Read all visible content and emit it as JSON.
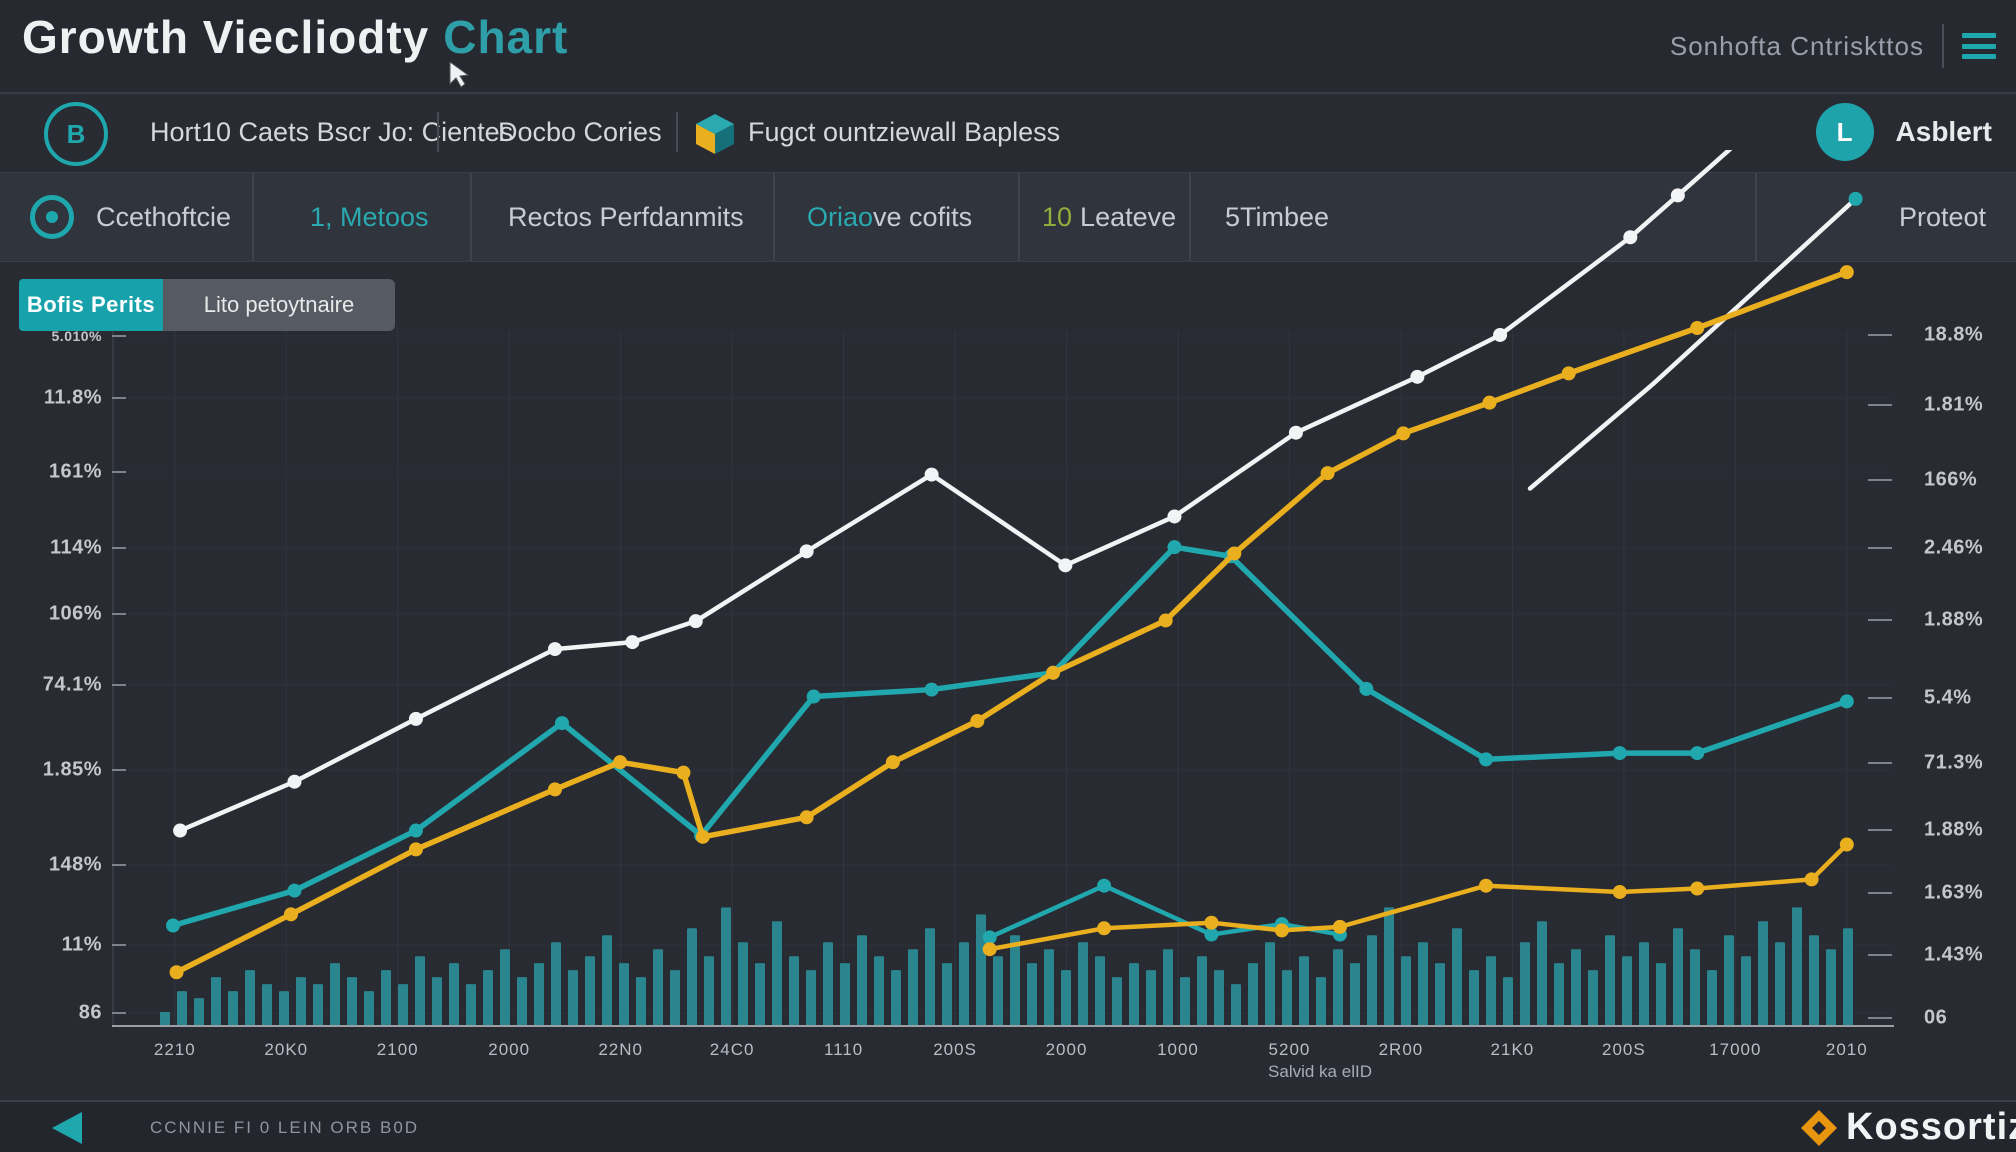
{
  "header": {
    "title_main": "Growth Viecliodty",
    "title_accent": "Chart",
    "right_text": "Sonhofta Cntriskttos"
  },
  "toolbar": {
    "item1": "Hort10 Caets Bscr Jo: Cientes",
    "item1_icon_letter": "B",
    "item2": "Docbo Cories",
    "item3": "Fugct ountziewall Bapless",
    "avatar_letter": "L",
    "user_label": "Asblert"
  },
  "nav": {
    "item1": "Ccethoftcie",
    "item2": "1, Metoos",
    "item3": "Rectos Perfdanmits",
    "item4_pre": "Oriao",
    "item4": "ve cofits",
    "item5_num": "10",
    "item5": "Leateve",
    "item6": "5Timbee",
    "item7": "Proteot"
  },
  "buttons": {
    "primary": "Bofis Perits",
    "secondary": "Lito petoytnaire"
  },
  "footer": {
    "left_text": "CCNNIE FI 0 LEIN ORB B0D",
    "brand": "Kossortiz"
  },
  "colors": {
    "teal": "#1fa7ae",
    "yellow": "#eaaf1e",
    "white_line": "#f2f3f5",
    "bars": "#2a8f98",
    "grid": "#3a3e47",
    "axis": "#9aa0a6",
    "green": "#8fae3c"
  },
  "chart_data": {
    "type": "mixed",
    "title": "Growth Viecliodty Chart",
    "x_axis_caption": "Salvid ka elID",
    "x_labels": [
      "2210",
      "20K0",
      "2100",
      "2000",
      "22N0",
      "24C0",
      "1110",
      "200S",
      "2000",
      "1000",
      "5200",
      "2R00",
      "21K0",
      "200S",
      "17000",
      "2010"
    ],
    "y_left_labels": [
      "5.010%",
      "11.8%",
      "161%",
      "114%",
      "106%",
      "74.1%",
      "1.85%",
      "148%",
      "11%",
      "86"
    ],
    "y_left_pos": [
      336,
      398,
      472,
      548,
      614,
      685,
      770,
      865,
      945,
      1013
    ],
    "y_right_labels": [
      "18.8%",
      "1.81%",
      "166%",
      "2.46%",
      "1.88%",
      "5.4%",
      "71.3%",
      "1.88%",
      "1.63%",
      "1.43%",
      "06"
    ],
    "y_right_pos": [
      335,
      405,
      480,
      548,
      620,
      698,
      763,
      830,
      893,
      955,
      1018
    ],
    "ylim": [
      0,
      100
    ],
    "grid": true,
    "legend": "none",
    "series": [
      {
        "name": "white-line",
        "type": "line",
        "color": "#f2f3f5",
        "width": 4.5,
        "dots": "all",
        "points": [
          [
            3.3,
            28
          ],
          [
            9.8,
            35
          ],
          [
            16.7,
            44
          ],
          [
            24.6,
            54
          ],
          [
            29,
            55
          ],
          [
            32.6,
            58
          ],
          [
            38.9,
            68
          ],
          [
            46,
            79
          ],
          [
            53.6,
            66
          ],
          [
            59.8,
            73
          ],
          [
            66.7,
            85
          ],
          [
            73.6,
            93
          ],
          [
            78.3,
            99
          ],
          [
            85.7,
            113
          ],
          [
            88.4,
            119
          ],
          [
            97.8,
            140
          ]
        ]
      },
      {
        "name": "white-line-2",
        "type": "line",
        "color": "#f2f3f5",
        "width": 4.5,
        "dots": "last",
        "end_dot": "#1fa7ae",
        "points": [
          [
            80,
            77
          ],
          [
            87,
            92
          ],
          [
            98.5,
            118.5
          ]
        ]
      },
      {
        "name": "teal-line",
        "type": "line",
        "color": "#21a8ae",
        "width": 5.5,
        "dots": "all",
        "points": [
          [
            2.9,
            14.4
          ],
          [
            9.8,
            19.4
          ],
          [
            16.7,
            28
          ],
          [
            25,
            43.4
          ],
          [
            32.9,
            27.3
          ],
          [
            39.3,
            47.2
          ],
          [
            46,
            48.2
          ],
          [
            52.9,
            50.6
          ],
          [
            59.8,
            68.6
          ],
          [
            63,
            67.3
          ],
          [
            70.7,
            48.3
          ],
          [
            77.5,
            38.2
          ],
          [
            85.1,
            39.1
          ],
          [
            89.5,
            39.1
          ],
          [
            98,
            46.5
          ]
        ]
      },
      {
        "name": "yellow-line",
        "type": "line",
        "color": "#eaaf1e",
        "width": 5.5,
        "dots": "all",
        "points": [
          [
            3.1,
            7.7
          ],
          [
            9.6,
            16
          ],
          [
            16.7,
            25.3
          ],
          [
            24.6,
            33.9
          ],
          [
            28.3,
            37.8
          ],
          [
            31.9,
            36.3
          ],
          [
            33,
            27.1
          ],
          [
            38.9,
            29.9
          ],
          [
            43.8,
            37.8
          ],
          [
            48.6,
            43.7
          ],
          [
            52.9,
            50.6
          ],
          [
            59.3,
            58.1
          ],
          [
            63.2,
            67.7
          ],
          [
            68.5,
            79.2
          ],
          [
            72.8,
            84.9
          ],
          [
            77.7,
            89.3
          ],
          [
            82.2,
            93.5
          ],
          [
            89.5,
            100
          ],
          [
            98,
            108
          ]
        ]
      },
      {
        "name": "teal-line-small",
        "type": "line",
        "color": "#21a8ae",
        "width": 4.5,
        "dots": "all",
        "points": [
          [
            49.3,
            12.7
          ],
          [
            55.8,
            20.1
          ],
          [
            61.9,
            13.1
          ],
          [
            65.9,
            14.6
          ],
          [
            69.2,
            13.1
          ]
        ]
      },
      {
        "name": "yellow-line-small",
        "type": "line",
        "color": "#eaaf1e",
        "width": 4.5,
        "dots": "all",
        "points": [
          [
            49.3,
            11
          ],
          [
            55.8,
            14
          ],
          [
            61.9,
            14.8
          ],
          [
            65.9,
            13.7
          ],
          [
            69.2,
            14.2
          ],
          [
            77.5,
            20.1
          ],
          [
            85.1,
            19.2
          ],
          [
            89.5,
            19.7
          ],
          [
            96,
            21
          ],
          [
            98,
            26
          ]
        ]
      }
    ],
    "bars": {
      "name": "volume-bars",
      "color": "#2a8f98",
      "values": [
        2,
        5,
        4,
        7,
        5,
        8,
        6,
        5,
        7,
        6,
        9,
        7,
        5,
        8,
        6,
        10,
        7,
        9,
        6,
        8,
        11,
        7,
        9,
        12,
        8,
        10,
        13,
        9,
        7,
        11,
        8,
        14,
        10,
        17,
        12,
        9,
        15,
        10,
        8,
        12,
        9,
        13,
        10,
        8,
        11,
        14,
        9,
        12,
        16,
        10,
        13,
        9,
        11,
        8,
        12,
        10,
        7,
        9,
        8,
        11,
        7,
        10,
        8,
        6,
        9,
        12,
        8,
        10,
        7,
        11,
        9,
        13,
        17,
        10,
        12,
        9,
        14,
        8,
        10,
        7,
        12,
        15,
        9,
        11,
        8,
        13,
        10,
        12,
        9,
        14,
        11,
        8,
        13,
        10,
        15,
        12,
        17,
        13,
        11,
        14
      ]
    }
  }
}
